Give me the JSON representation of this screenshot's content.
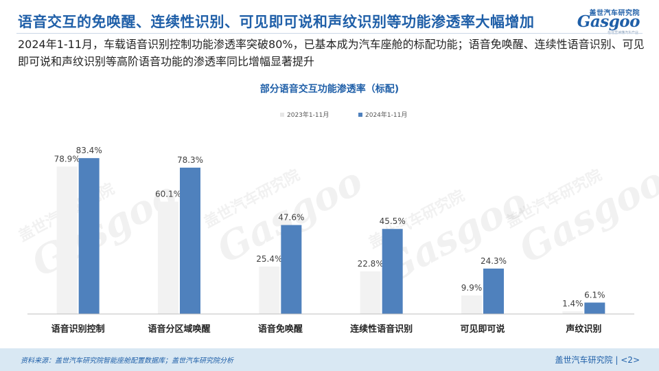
{
  "header": {
    "title": "语音交互的免唤醒、连续性识别、可见即可说和声纹识别等功能渗透率大幅增加",
    "logo_cn": "盖世汽车研究院",
    "logo_en": "Gasgoo",
    "logo_tag": "在这里读懂汽车产业"
  },
  "subtitle": "2024年1-11月，车载语音识别控制功能渗透率突破80%，已基本成为汽车座舱的标配功能；语音免唤醒、连续性语音识别、可见即可说和声纹识别等高阶语音功能的渗透率同比增幅显著提升",
  "colors": {
    "accent": "#1f5fa8",
    "series_2023": "#f2f2f2",
    "series_2024": "#4f81bd",
    "footer_bg": "#d9e8f3"
  },
  "watermark": {
    "cn": "盖世汽车研究院",
    "en": "Gasgoo"
  },
  "chart_data": {
    "type": "bar",
    "title": "部分语音交互功能渗透率（标配)",
    "categories": [
      "语音识别控制",
      "语音分区域唤醒",
      "语音免唤醒",
      "连续性语音识别",
      "可见即可说",
      "声纹识别"
    ],
    "series": [
      {
        "name": "2023年1-11月",
        "values": [
          78.9,
          60.1,
          25.4,
          22.8,
          9.9,
          1.4
        ],
        "labels": [
          "78.9%",
          "60.1%",
          "25.4%",
          "22.8%",
          "9.9%",
          "1.4%"
        ]
      },
      {
        "name": "2024年1-11月",
        "values": [
          83.4,
          78.3,
          47.6,
          45.5,
          24.3,
          6.1
        ],
        "labels": [
          "83.4%",
          "78.3%",
          "47.6%",
          "45.5%",
          "24.3%",
          "6.1%"
        ]
      }
    ],
    "unit": "%",
    "ylim": [
      0,
      90
    ],
    "grid": false,
    "legend_position": "top-center",
    "xlabel": "",
    "ylabel": ""
  },
  "footer": {
    "source": "资料来源：盖世汽车研究院智能座舱配置数据库；盖世汽车研究院分析",
    "org": "盖世汽车研究院",
    "page": "<2>"
  }
}
